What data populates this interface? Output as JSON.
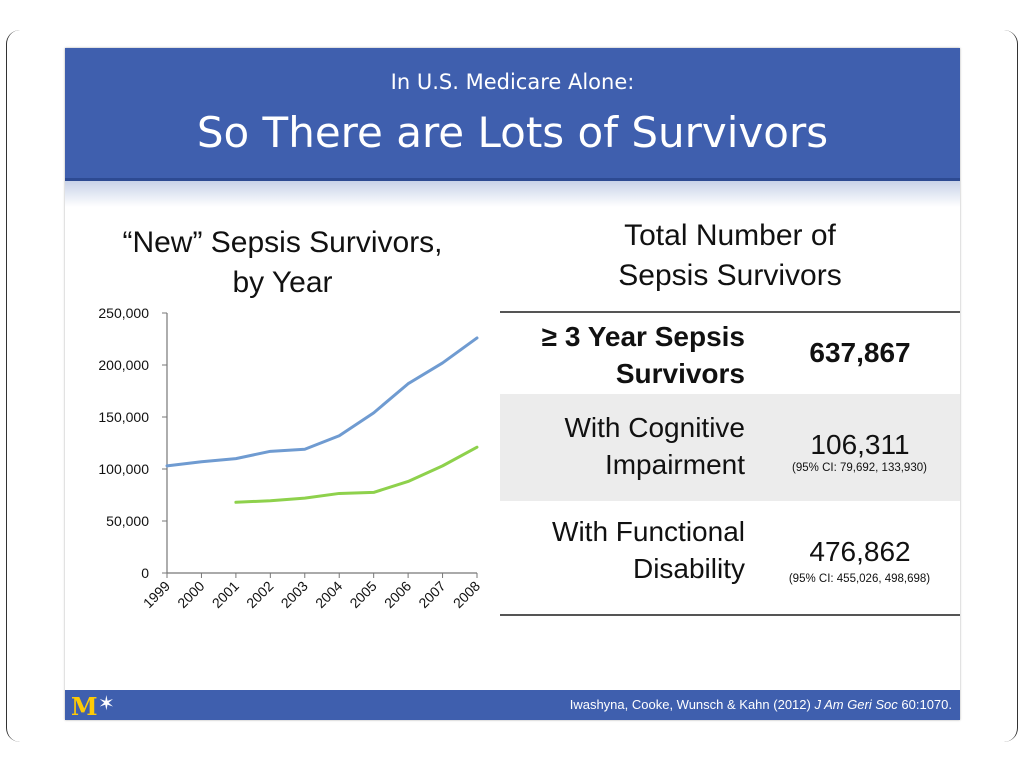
{
  "header": {
    "subtitle": "In U.S. Medicare Alone:",
    "title": "So There are Lots of Survivors"
  },
  "chart": {
    "title_line1": "“New” Sepsis Survivors,",
    "title_line2": "by Year"
  },
  "chart_data": {
    "type": "line",
    "title": "“New” Sepsis Survivors, by Year",
    "categories": [
      "1999",
      "2000",
      "2001",
      "2002",
      "2003",
      "2004",
      "2005",
      "2006",
      "2007",
      "2008"
    ],
    "series": [
      {
        "color": "#6f9bd1",
        "values": [
          103000,
          107000,
          110000,
          117000,
          119000,
          132000,
          154000,
          182000,
          202000,
          226000
        ]
      },
      {
        "color": "#8ed14c",
        "values": [
          null,
          null,
          68000,
          69500,
          72000,
          76500,
          77500,
          88000,
          103000,
          121000
        ]
      }
    ],
    "ylim": [
      0,
      250000
    ],
    "yticks": [
      "250,000",
      "200,000",
      "150,000",
      "100,000",
      "50,000",
      "0"
    ],
    "ytick_values": [
      250000,
      200000,
      150000,
      100000,
      50000,
      0
    ],
    "grid": false,
    "legend": "none"
  },
  "table": {
    "title_line1": "Total Number of",
    "title_line2": "Sepsis Survivors",
    "rows": [
      {
        "label_line1": "≥ 3 Year Sepsis",
        "label_line2": "Survivors",
        "value": "637,867",
        "ci": ""
      },
      {
        "label_line1": "With Cognitive",
        "label_line2": "Impairment",
        "value": "106,311",
        "ci": "(95% CI: 79,692, 133,930)"
      },
      {
        "label_line1": "With Functional",
        "label_line2": "Disability",
        "value": "476,862",
        "ci": "(95% CI: 455,026, 498,698)"
      }
    ]
  },
  "footer": {
    "logo_letter": "M",
    "logo_star": "✶",
    "citation_authors": "Iwashyna, Cooke, Wunsch & Kahn (2012) ",
    "citation_journal": "J Am Geri Soc",
    "citation_ref": " 60:1070."
  },
  "colors": {
    "header_blue": "#3f5fae",
    "series_blue": "#6f9bd1",
    "series_green": "#8ed14c",
    "logo_maize": "#ffcb05"
  }
}
